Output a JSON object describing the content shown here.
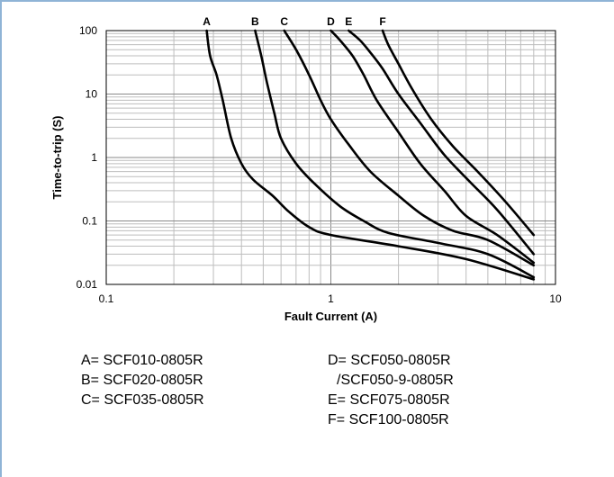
{
  "chart_data": {
    "type": "line",
    "xlabel": "Fault Current (A)",
    "ylabel": "Time-to-trip (S)",
    "xscale": "log",
    "yscale": "log",
    "xlim": [
      0.1,
      10
    ],
    "ylim": [
      0.01,
      100
    ],
    "x_tick_labels": [
      "0.1",
      "1",
      "10"
    ],
    "y_tick_labels": [
      "100",
      "10",
      "1",
      "0.1",
      "0.01"
    ],
    "grid": true,
    "series": [
      {
        "name": "A",
        "points": [
          [
            0.28,
            100
          ],
          [
            0.29,
            40
          ],
          [
            0.31,
            20
          ],
          [
            0.33,
            8
          ],
          [
            0.36,
            2
          ],
          [
            0.4,
            0.8
          ],
          [
            0.45,
            0.45
          ],
          [
            0.55,
            0.25
          ],
          [
            0.65,
            0.14
          ],
          [
            0.8,
            0.08
          ],
          [
            1.0,
            0.06
          ],
          [
            2.0,
            0.04
          ],
          [
            4.0,
            0.025
          ],
          [
            8.0,
            0.012
          ]
        ]
      },
      {
        "name": "B",
        "points": [
          [
            0.46,
            100
          ],
          [
            0.49,
            40
          ],
          [
            0.52,
            15
          ],
          [
            0.56,
            5
          ],
          [
            0.6,
            2
          ],
          [
            0.7,
            0.8
          ],
          [
            0.85,
            0.38
          ],
          [
            1.1,
            0.17
          ],
          [
            1.4,
            0.1
          ],
          [
            1.8,
            0.065
          ],
          [
            3.0,
            0.045
          ],
          [
            5.0,
            0.03
          ],
          [
            8.0,
            0.013
          ]
        ]
      },
      {
        "name": "C",
        "points": [
          [
            0.62,
            100
          ],
          [
            0.7,
            50
          ],
          [
            0.8,
            20
          ],
          [
            0.9,
            8
          ],
          [
            1.0,
            4
          ],
          [
            1.2,
            1.6
          ],
          [
            1.5,
            0.6
          ],
          [
            2.0,
            0.25
          ],
          [
            2.6,
            0.12
          ],
          [
            3.5,
            0.07
          ],
          [
            5.0,
            0.05
          ],
          [
            8.0,
            0.02
          ]
        ]
      },
      {
        "name": "D",
        "points": [
          [
            1.0,
            100
          ],
          [
            1.1,
            70
          ],
          [
            1.25,
            40
          ],
          [
            1.4,
            20
          ],
          [
            1.6,
            8
          ],
          [
            2.0,
            2.5
          ],
          [
            2.5,
            0.8
          ],
          [
            3.2,
            0.3
          ],
          [
            4.0,
            0.12
          ],
          [
            5.5,
            0.06
          ],
          [
            8.0,
            0.022
          ]
        ]
      },
      {
        "name": "E",
        "points": [
          [
            1.2,
            100
          ],
          [
            1.35,
            70
          ],
          [
            1.5,
            45
          ],
          [
            1.7,
            25
          ],
          [
            2.0,
            10
          ],
          [
            2.5,
            3.5
          ],
          [
            3.2,
            1.1
          ],
          [
            4.2,
            0.4
          ],
          [
            5.5,
            0.15
          ],
          [
            8.0,
            0.03
          ]
        ]
      },
      {
        "name": "F",
        "points": [
          [
            1.7,
            100
          ],
          [
            1.8,
            60
          ],
          [
            2.0,
            30
          ],
          [
            2.3,
            12
          ],
          [
            2.8,
            4
          ],
          [
            3.5,
            1.5
          ],
          [
            4.5,
            0.6
          ],
          [
            6.0,
            0.2
          ],
          [
            8.0,
            0.06
          ]
        ]
      }
    ]
  },
  "legend": {
    "left": [
      "A= SCF010-0805R",
      "B= SCF020-0805R",
      "C= SCF035-0805R"
    ],
    "right": [
      "D= SCF050-0805R",
      "/SCF050-9-0805R",
      "E= SCF075-0805R",
      "F= SCF100-0805R"
    ]
  }
}
